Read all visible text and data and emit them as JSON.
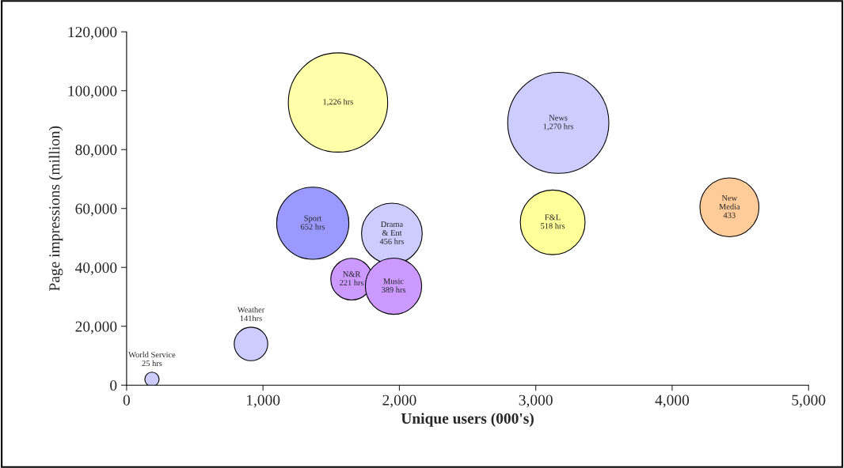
{
  "chart_data": {
    "type": "bubble",
    "xlabel": "Unique users (000's)",
    "ylabel": "Page impressions (million)",
    "x": [
      186,
      912,
      1550,
      1365,
      1650,
      1945,
      1957,
      3165,
      3124,
      4420
    ],
    "values": [
      2000,
      14000,
      96000,
      55000,
      36000,
      51500,
      33600,
      89100,
      55300,
      60400
    ],
    "sizes": [
      0.02,
      0.11,
      0.965,
      0.51,
      0.17,
      0.36,
      0.31,
      1,
      0.41,
      0.34
    ],
    "colors": [
      "#ccccff",
      "#ccccff",
      "#ffffaa",
      "#9999ff",
      "#cc99ff",
      "#ccccff",
      "#cc99ff",
      "#ccccff",
      "#ffff99",
      "#ffcc99"
    ],
    "annotations": [
      {
        "text": "World Service\n25 hrs",
        "x": 186,
        "y": 2000
      },
      {
        "text": "Weather\n141hrs",
        "x": 912,
        "y": 14000
      },
      {
        "text": "1,226 hrs",
        "x": 1550,
        "y": 96000
      },
      {
        "text": "Sport\n652 hrs",
        "x": 1365,
        "y": 55000
      },
      {
        "text": "N&R\n221 hrs",
        "x": 1650,
        "y": 36000
      },
      {
        "text": "Drama\n& Ent\n456 hrs",
        "x": 1945,
        "y": 51500
      },
      {
        "text": "Music\n389 hrs",
        "x": 1957,
        "y": 33600
      },
      {
        "text": "News\n1,270 hrs",
        "x": 3165,
        "y": 89100
      },
      {
        "text": "F&L\n518 hrs",
        "x": 3124,
        "y": 55300
      },
      {
        "text": "New\nMedia\n433",
        "x": 4420,
        "y": 60400
      }
    ],
    "xlim": [
      0,
      5000
    ],
    "xticks": [
      {
        "value": 0,
        "label": "0"
      },
      {
        "value": 1000,
        "label": "1,000"
      },
      {
        "value": 2000,
        "label": "2,000"
      },
      {
        "value": 3000,
        "label": "3,000"
      },
      {
        "value": 4000,
        "label": "4,000"
      },
      {
        "value": 5000,
        "label": "5,000"
      }
    ],
    "ylim": [
      0,
      120000
    ],
    "yticks": [
      {
        "value": 0,
        "label": "0"
      },
      {
        "value": 20000,
        "label": "20,000"
      },
      {
        "value": 40000,
        "label": "40,000"
      },
      {
        "value": 60000,
        "label": "60,000"
      },
      {
        "value": 80000,
        "label": "80,000"
      },
      {
        "value": 100000,
        "label": "100,000"
      },
      {
        "value": 120000,
        "label": "120,000"
      }
    ],
    "grid": false,
    "legend": false
  }
}
